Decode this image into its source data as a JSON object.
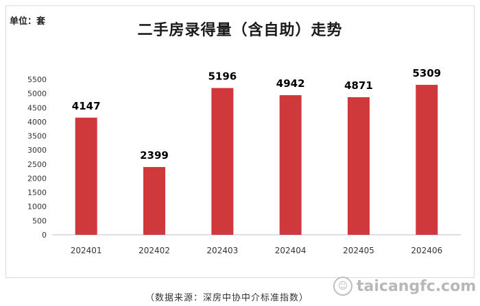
{
  "unit_label": "单位：套",
  "source": "（数据来源：深房中协中介标准指数）",
  "watermark": {
    "icon": "smile-icon",
    "text": "taicangfc.com"
  },
  "colors": {
    "bar": "#d0393b",
    "axis": "#bfbfbf",
    "label": "#000000"
  },
  "chart_data": {
    "type": "bar",
    "title": "二手房录得量（含自助）走势",
    "xlabel": "",
    "ylabel": "",
    "categories": [
      "202401",
      "202402",
      "202403",
      "202404",
      "202405",
      "202406"
    ],
    "values": [
      4147,
      2399,
      5196,
      4942,
      4871,
      5309
    ],
    "yticks": [
      0,
      500,
      1000,
      1500,
      2000,
      2500,
      3000,
      3500,
      4000,
      4500,
      5000,
      5500
    ],
    "ylim": [
      0,
      5500
    ],
    "grid": false,
    "legend": "none"
  }
}
